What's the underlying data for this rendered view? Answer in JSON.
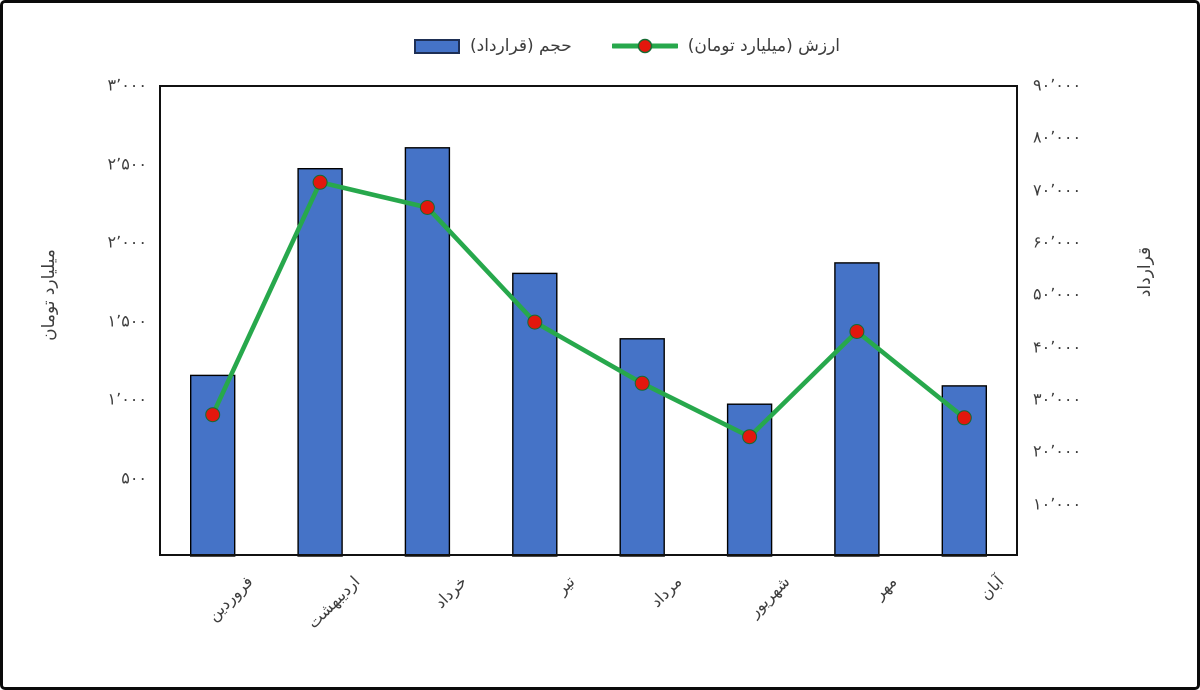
{
  "legend": {
    "value_label": "ارزش (میلیارد تومان)",
    "volume_label": "حجم (قرارداد)"
  },
  "colors": {
    "bar_fill": "#4573C7",
    "bar_edge": "#000000",
    "line": "#27A84C",
    "marker_fill": "#E3170D",
    "marker_edge": "#156B33",
    "swatch_edge": "#1E2F55",
    "text": "#3D3D3D",
    "plot_border": "#111111"
  },
  "chart_data": {
    "type": "bar",
    "subtype": "combo bar + line, dual y-axis",
    "categories": [
      "فروردین",
      "اردیبهشت",
      "خرداد",
      "تیر",
      "مرداد",
      "شهریور",
      "مهر",
      "آبان"
    ],
    "series": [
      {
        "name": "حجم (قرارداد)",
        "type": "bar",
        "axis": "right",
        "values": [
          34500,
          74000,
          78000,
          54000,
          41500,
          29000,
          56000,
          32500
        ]
      },
      {
        "name": "ارزش (میلیارد تومان)",
        "type": "line",
        "axis": "left",
        "values": [
          900,
          2380,
          2220,
          1490,
          1100,
          760,
          1430,
          880
        ]
      }
    ],
    "left_axis": {
      "title": "میلیارد تومان",
      "min": 0,
      "max": 3000,
      "tick_values": [
        500,
        1000,
        1500,
        2000,
        2500,
        3000
      ],
      "tick_labels": [
        "۵۰۰",
        "۱٬۰۰۰",
        "۱٬۵۰۰",
        "۲٬۰۰۰",
        "۲٬۵۰۰",
        "۳٬۰۰۰"
      ]
    },
    "right_axis": {
      "title": "قرارداد",
      "min": 0,
      "max": 90000,
      "tick_values": [
        10000,
        20000,
        30000,
        40000,
        50000,
        60000,
        70000,
        80000,
        90000
      ],
      "tick_labels": [
        "۱۰٬۰۰۰",
        "۲۰٬۰۰۰",
        "۳۰٬۰۰۰",
        "۴۰٬۰۰۰",
        "۵۰٬۰۰۰",
        "۶۰٬۰۰۰",
        "۷۰٬۰۰۰",
        "۸۰٬۰۰۰",
        "۹۰٬۰۰۰"
      ]
    },
    "grid": false,
    "legend_position": "top-center",
    "x_tick_label_rotation": 45
  }
}
